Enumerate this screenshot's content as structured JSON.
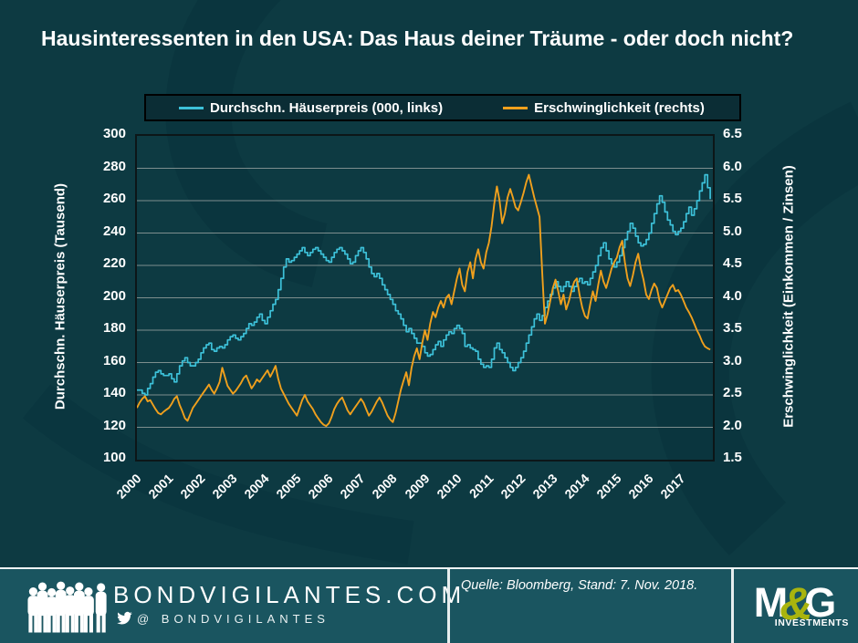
{
  "title": "Hausinteressenten in den USA: Das Haus deiner Träume - oder doch nicht?",
  "colors": {
    "background": "#0d3a42",
    "watermark": "#07303a",
    "plot_border": "#0c1618",
    "gridline": "#9aa4a1",
    "price_line": "#3dc1d9",
    "affordability_line": "#f0a01d",
    "legend_background": "#0b2d35",
    "footer_background": "#1a5560",
    "text": "#ffffff",
    "mg_ampersand": "#a9b40e"
  },
  "icons": {
    "crowd": "crowd-icon",
    "twitter": "twitter-bird-icon"
  },
  "legend": [
    {
      "label": "Durchschn. Häuserpreis (000, links)",
      "color": "#3dc1d9"
    },
    {
      "label": "Erschwinglichkeit (rechts)",
      "color": "#f0a01d"
    }
  ],
  "chart_data": {
    "type": "line",
    "title": "Hausinteressenten in den USA: Das Haus deiner Träume - oder doch nicht?",
    "grid": "horizontal",
    "legend_position": "top",
    "x_start_year": 2000,
    "x_end_year": 2018,
    "points_per_year": 12,
    "x_tick_labels": [
      "2000",
      "2001",
      "2002",
      "2003",
      "2004",
      "2005",
      "2006",
      "2007",
      "2008",
      "2009",
      "2010",
      "2011",
      "2012",
      "2013",
      "2014",
      "2015",
      "2016",
      "2017"
    ],
    "left_axis": {
      "label": "Durchschn. Häuserpreis (Tausend)",
      "min": 100,
      "max": 300,
      "tick_step": 20,
      "ticks": [
        "300",
        "280",
        "260",
        "240",
        "220",
        "200",
        "180",
        "160",
        "140",
        "120",
        "100"
      ]
    },
    "right_axis": {
      "label": "Erschwinglichkeit (Einkommen / Zinsen)",
      "min": 1.5,
      "max": 6.5,
      "tick_step": 0.5,
      "ticks": [
        "6.5",
        "6.0",
        "5.5",
        "5.0",
        "4.5",
        "4.0",
        "3.5",
        "3.0",
        "2.5",
        "2.0",
        "1.5"
      ]
    },
    "series": [
      {
        "name": "Durchschn. Häuserpreis (000, links)",
        "axis": "left",
        "color": "#3dc1d9",
        "style": "step",
        "values": [
          143,
          143,
          141,
          140,
          144,
          147,
          151,
          154,
          155,
          153,
          152,
          152,
          153,
          150,
          148,
          153,
          158,
          161,
          163,
          160,
          158,
          158,
          160,
          162,
          166,
          169,
          171,
          172,
          168,
          167,
          169,
          170,
          169,
          171,
          174,
          176,
          177,
          175,
          174,
          176,
          178,
          181,
          184,
          183,
          185,
          188,
          190,
          186,
          184,
          188,
          192,
          196,
          199,
          205,
          212,
          219,
          224,
          222,
          223,
          225,
          227,
          229,
          231,
          228,
          226,
          228,
          230,
          231,
          229,
          227,
          225,
          223,
          222,
          225,
          228,
          230,
          231,
          229,
          227,
          224,
          221,
          222,
          226,
          229,
          231,
          228,
          224,
          219,
          215,
          213,
          215,
          212,
          208,
          205,
          202,
          199,
          196,
          192,
          190,
          187,
          183,
          179,
          181,
          178,
          175,
          172,
          172,
          170,
          166,
          164,
          165,
          168,
          171,
          173,
          170,
          174,
          177,
          179,
          178,
          181,
          183,
          181,
          178,
          170,
          171,
          169,
          168,
          167,
          162,
          159,
          157,
          158,
          157,
          162,
          169,
          172,
          168,
          166,
          163,
          160,
          157,
          155,
          157,
          160,
          163,
          167,
          172,
          177,
          182,
          187,
          190,
          186,
          189,
          194,
          198,
          202,
          206,
          210,
          207,
          204,
          207,
          210,
          207,
          204,
          207,
          210,
          212,
          209,
          210,
          208,
          212,
          216,
          220,
          226,
          231,
          234,
          229,
          224,
          221,
          219,
          222,
          226,
          231,
          236,
          241,
          246,
          243,
          238,
          234,
          232,
          233,
          236,
          240,
          246,
          252,
          258,
          263,
          259,
          253,
          248,
          245,
          241,
          239,
          241,
          243,
          247,
          252,
          256,
          251,
          255,
          260,
          266,
          271,
          276,
          268,
          261
        ]
      },
      {
        "name": "Erschwinglichkeit (rechts)",
        "axis": "right",
        "color": "#f0a01d",
        "style": "linear",
        "values": [
          2.3,
          2.38,
          2.44,
          2.48,
          2.4,
          2.42,
          2.35,
          2.28,
          2.22,
          2.2,
          2.24,
          2.27,
          2.3,
          2.36,
          2.44,
          2.48,
          2.35,
          2.25,
          2.14,
          2.1,
          2.2,
          2.3,
          2.36,
          2.42,
          2.48,
          2.54,
          2.6,
          2.66,
          2.58,
          2.52,
          2.6,
          2.7,
          2.92,
          2.78,
          2.64,
          2.58,
          2.52,
          2.56,
          2.62,
          2.68,
          2.76,
          2.8,
          2.7,
          2.6,
          2.66,
          2.74,
          2.7,
          2.76,
          2.82,
          2.88,
          2.78,
          2.86,
          2.95,
          2.75,
          2.6,
          2.52,
          2.44,
          2.36,
          2.3,
          2.24,
          2.18,
          2.3,
          2.42,
          2.5,
          2.4,
          2.34,
          2.28,
          2.2,
          2.14,
          2.08,
          2.04,
          2.02,
          2.06,
          2.16,
          2.28,
          2.36,
          2.42,
          2.46,
          2.36,
          2.26,
          2.2,
          2.26,
          2.32,
          2.38,
          2.44,
          2.38,
          2.28,
          2.18,
          2.24,
          2.32,
          2.4,
          2.46,
          2.38,
          2.28,
          2.18,
          2.12,
          2.08,
          2.22,
          2.4,
          2.58,
          2.72,
          2.85,
          2.65,
          2.92,
          3.1,
          3.22,
          3.05,
          3.3,
          3.5,
          3.35,
          3.6,
          3.78,
          3.7,
          3.85,
          3.95,
          3.85,
          4.0,
          4.05,
          3.9,
          4.1,
          4.3,
          4.45,
          4.2,
          4.1,
          4.4,
          4.55,
          4.3,
          4.6,
          4.75,
          4.55,
          4.45,
          4.7,
          4.85,
          5.1,
          5.45,
          5.72,
          5.5,
          5.15,
          5.3,
          5.55,
          5.68,
          5.55,
          5.4,
          5.35,
          5.48,
          5.62,
          5.78,
          5.9,
          5.72,
          5.55,
          5.4,
          5.25,
          4.4,
          3.6,
          3.75,
          3.95,
          4.15,
          4.28,
          4.1,
          3.9,
          4.05,
          3.82,
          3.95,
          4.12,
          4.25,
          4.3,
          4.05,
          3.85,
          3.72,
          3.68,
          3.9,
          4.1,
          3.95,
          4.2,
          4.42,
          4.25,
          4.15,
          4.3,
          4.45,
          4.55,
          4.62,
          4.78,
          4.88,
          4.55,
          4.3,
          4.18,
          4.35,
          4.55,
          4.68,
          4.45,
          4.28,
          4.05,
          3.98,
          4.12,
          4.22,
          4.15,
          3.95,
          3.85,
          3.95,
          4.05,
          4.15,
          4.2,
          4.1,
          4.12,
          4.05,
          3.95,
          3.85,
          3.78,
          3.7,
          3.6,
          3.5,
          3.42,
          3.32,
          3.25,
          3.22,
          3.2
        ]
      }
    ]
  },
  "footer": {
    "site": "BONDVIGILANTES.COM",
    "twitter_handle": "@ BONDVIGILANTES",
    "source": "Quelle: Bloomberg, Stand: 7. Nov. 2018.",
    "brand": {
      "m": "M",
      "amp": "&",
      "g": "G",
      "sub": "INVESTMENTS"
    }
  }
}
